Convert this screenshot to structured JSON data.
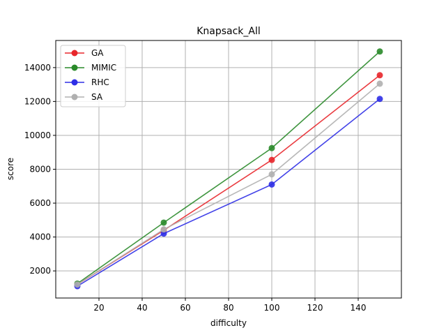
{
  "chart_data": {
    "type": "line",
    "title": "Knapsack_All",
    "xlabel": "difficulty",
    "ylabel": "score",
    "x": [
      10,
      50,
      100,
      150
    ],
    "xlim": [
      0,
      160
    ],
    "ylim": [
      400,
      15600
    ],
    "xticks": [
      20,
      40,
      60,
      80,
      100,
      120,
      140
    ],
    "yticks": [
      2000,
      4000,
      6000,
      8000,
      10000,
      12000,
      14000
    ],
    "grid": true,
    "legend_position": "top-left",
    "series": [
      {
        "name": "GA",
        "color": "#e8262b",
        "values": [
          1200,
          4400,
          8550,
          13550
        ]
      },
      {
        "name": "MIMIC",
        "color": "#2a8a2a",
        "values": [
          1250,
          4850,
          9250,
          14950
        ]
      },
      {
        "name": "RHC",
        "color": "#2e2ee6",
        "values": [
          1100,
          4200,
          7100,
          12150
        ]
      },
      {
        "name": "SA",
        "color": "#b0b0b0",
        "values": [
          1200,
          4450,
          7700,
          13050
        ]
      }
    ]
  }
}
